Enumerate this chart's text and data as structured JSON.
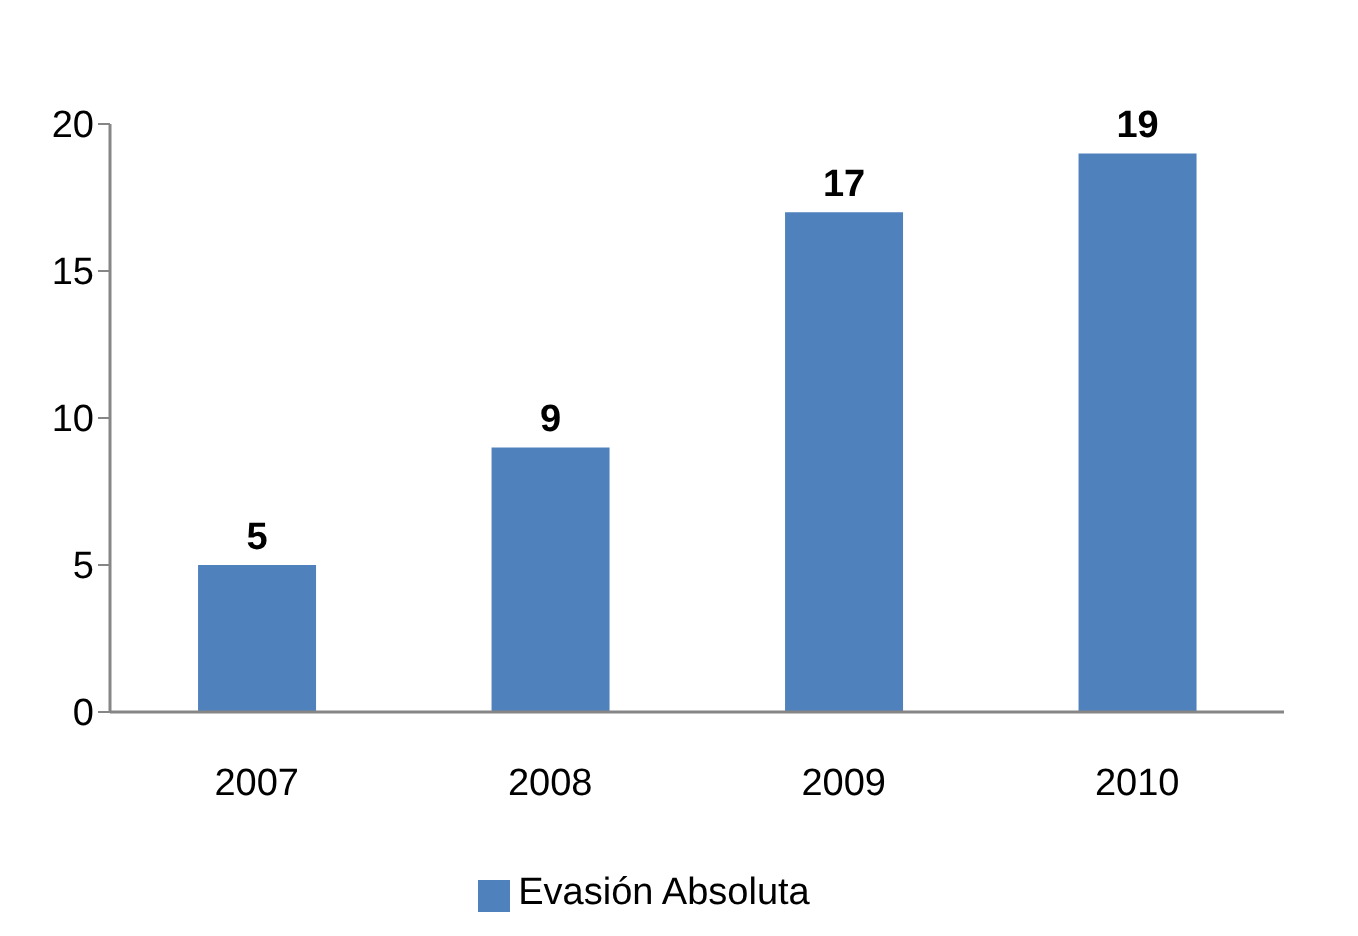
{
  "chart_data": {
    "type": "bar",
    "categories": [
      "2007",
      "2008",
      "2009",
      "2010"
    ],
    "series": [
      {
        "name": "Evasión Absoluta",
        "color": "#4f81bd",
        "values": [
          5,
          9,
          17,
          19
        ]
      }
    ],
    "ylim": [
      0,
      20
    ],
    "yticks": [
      0,
      5,
      10,
      15,
      20
    ],
    "data_labels": true,
    "legend": "bottom"
  }
}
